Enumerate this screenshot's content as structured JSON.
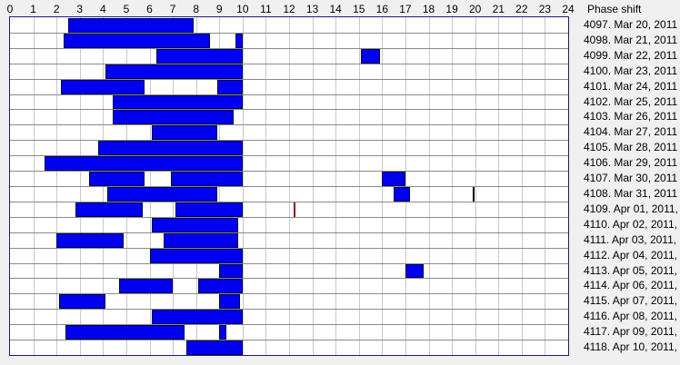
{
  "header": {
    "phase_label": "Phase shift"
  },
  "colors": {
    "bar": "#0000f0",
    "bar_border": "#000050",
    "red_mark": "#8b1a1a",
    "black_mark": "#000000",
    "frame": "#1a1a80"
  },
  "chart_data": {
    "type": "gantt",
    "title": "",
    "xlabel": "",
    "ylabel": "",
    "x_ticks": [
      "0",
      "1",
      "2",
      "3",
      "4",
      "5",
      "6",
      "7",
      "8",
      "9",
      "10",
      "11",
      "12",
      "13",
      "14",
      "15",
      "16",
      "17",
      "18",
      "19",
      "20",
      "21",
      "22",
      "23",
      "24"
    ],
    "xlim": [
      0,
      24
    ],
    "grid": true,
    "right_column_header": "Phase shift",
    "rows": [
      {
        "label": "4097. Mar 20, 2011",
        "segments": [
          [
            2.5,
            7.9
          ]
        ],
        "marks": []
      },
      {
        "label": "4098. Mar 21, 2011",
        "segments": [
          [
            2.3,
            8.6
          ],
          [
            9.7,
            10.0
          ]
        ],
        "marks": []
      },
      {
        "label": "4099. Mar 22, 2011",
        "segments": [
          [
            6.3,
            10.0
          ],
          [
            15.1,
            15.9
          ]
        ],
        "marks": []
      },
      {
        "label": "4100. Mar 23, 2011",
        "segments": [
          [
            4.1,
            10.0
          ]
        ],
        "marks": []
      },
      {
        "label": "4101. Mar 24, 2011",
        "segments": [
          [
            2.2,
            5.8
          ],
          [
            8.9,
            10.0
          ]
        ],
        "marks": []
      },
      {
        "label": "4102. Mar 25, 2011",
        "segments": [
          [
            4.4,
            10.0
          ]
        ],
        "marks": []
      },
      {
        "label": "4103. Mar 26, 2011",
        "segments": [
          [
            4.4,
            9.6
          ]
        ],
        "marks": []
      },
      {
        "label": "4104. Mar 27, 2011",
        "segments": [
          [
            6.1,
            8.9
          ]
        ],
        "marks": []
      },
      {
        "label": "4105. Mar 28, 2011",
        "segments": [
          [
            3.8,
            10.0
          ]
        ],
        "marks": []
      },
      {
        "label": "4106. Mar 29, 2011",
        "segments": [
          [
            1.5,
            10.0
          ]
        ],
        "marks": []
      },
      {
        "label": "4107. Mar 30, 2011",
        "segments": [
          [
            3.4,
            5.8
          ],
          [
            6.9,
            10.0
          ],
          [
            16.0,
            17.0
          ]
        ],
        "marks": []
      },
      {
        "label": "4108. Mar 31, 2011",
        "segments": [
          [
            4.2,
            8.9
          ],
          [
            16.5,
            17.2
          ]
        ],
        "marks": [
          {
            "x": 19.9,
            "color": "#000000"
          }
        ]
      },
      {
        "label": "4109. Apr 01, 2011,",
        "segments": [
          [
            2.8,
            5.7
          ],
          [
            7.1,
            10.0
          ]
        ],
        "marks": [
          {
            "x": 12.2,
            "color": "#8b1a1a"
          }
        ]
      },
      {
        "label": "4110. Apr 02, 2011,",
        "segments": [
          [
            6.1,
            9.8
          ]
        ],
        "marks": []
      },
      {
        "label": "4111. Apr 03, 2011,",
        "segments": [
          [
            2.0,
            4.9
          ],
          [
            6.6,
            9.8
          ]
        ],
        "marks": []
      },
      {
        "label": "4112. Apr 04, 2011,",
        "segments": [
          [
            6.0,
            10.0
          ]
        ],
        "marks": []
      },
      {
        "label": "4113. Apr 05, 2011,",
        "segments": [
          [
            9.0,
            10.0
          ],
          [
            17.0,
            17.8
          ]
        ],
        "marks": []
      },
      {
        "label": "4114. Apr 06, 2011,",
        "segments": [
          [
            4.7,
            7.0
          ],
          [
            8.1,
            10.0
          ]
        ],
        "marks": []
      },
      {
        "label": "4115. Apr 07, 2011,",
        "segments": [
          [
            2.1,
            4.1
          ],
          [
            9.0,
            9.9
          ]
        ],
        "marks": []
      },
      {
        "label": "4116. Apr 08, 2011,",
        "segments": [
          [
            6.1,
            10.0
          ]
        ],
        "marks": []
      },
      {
        "label": "4117. Apr 09, 2011,",
        "segments": [
          [
            2.4,
            7.5
          ],
          [
            9.0,
            9.3
          ]
        ],
        "marks": []
      },
      {
        "label": "4118. Apr 10, 2011,",
        "segments": [
          [
            7.6,
            10.0
          ]
        ],
        "marks": []
      }
    ]
  }
}
